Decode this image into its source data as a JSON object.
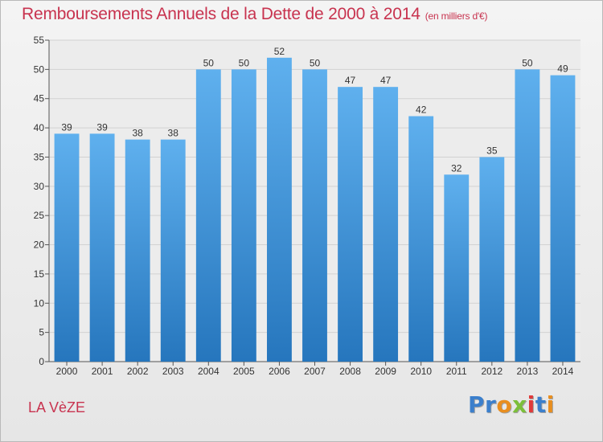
{
  "chart_data": {
    "type": "bar",
    "title": "Remboursements Annuels de la Dette de 2000 à 2014",
    "subtitle": "(en milliers d'€)",
    "categories": [
      "2000",
      "2001",
      "2002",
      "2003",
      "2004",
      "2005",
      "2006",
      "2007",
      "2008",
      "2009",
      "2010",
      "2011",
      "2012",
      "2013",
      "2014"
    ],
    "values": [
      39,
      39,
      38,
      38,
      50,
      50,
      52,
      50,
      47,
      47,
      42,
      32,
      35,
      50,
      49
    ],
    "ylim": [
      0,
      55
    ],
    "yticks": [
      "0",
      "5",
      "10",
      "15",
      "20",
      "25",
      "30",
      "35",
      "40",
      "45",
      "50",
      "55"
    ],
    "grid": true,
    "bar_color": "#3d8fd6"
  },
  "footer": {
    "place": "LA VèZE",
    "logo": [
      "P",
      "r",
      "o",
      "x",
      "i",
      "t",
      "i"
    ],
    "logo_colors": [
      "#3b7fcc",
      "#3b7fcc",
      "#e98e1e",
      "#7cbf3a",
      "#e03a3a",
      "#3b7fcc",
      "#e98e1e"
    ]
  }
}
